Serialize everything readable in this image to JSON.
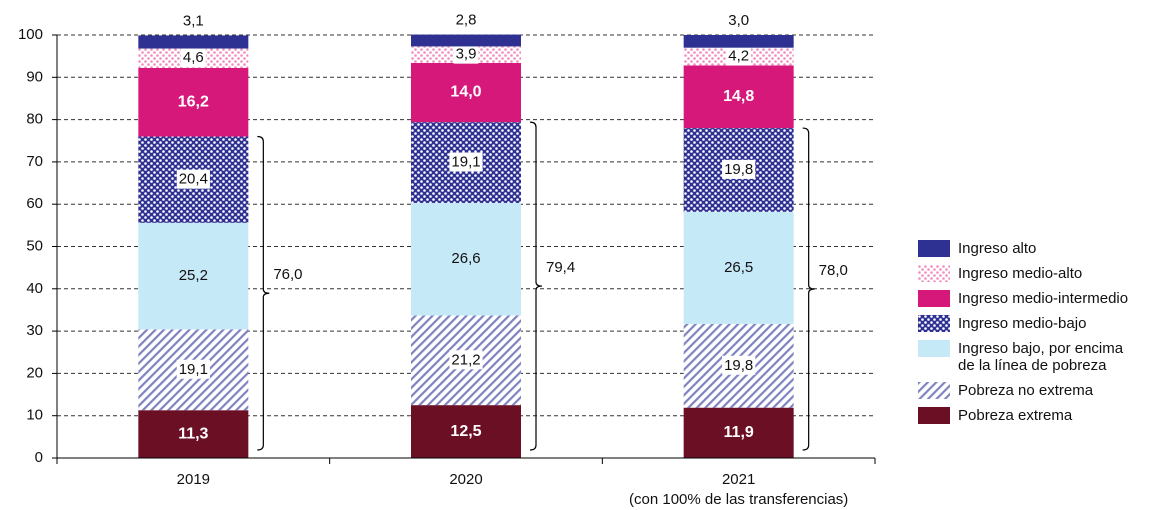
{
  "chart_data": {
    "type": "stacked_bar",
    "categories": [
      "2019",
      "2020",
      "2021"
    ],
    "category_sublabels": [
      null,
      null,
      "(con 100% de las transferencias)"
    ],
    "ylim": [
      0,
      100
    ],
    "yticks": [
      0,
      10,
      20,
      30,
      40,
      50,
      60,
      70,
      80,
      90,
      100
    ],
    "grid": true,
    "legend": "right",
    "series": [
      {
        "name": "Pobreza extrema",
        "color": "#6b0f24",
        "label_color": "#ffffff",
        "values": [
          11.3,
          12.5,
          11.9
        ],
        "value_labels": [
          "11,3",
          "12,5",
          "11,9"
        ]
      },
      {
        "name": "Pobreza no extrema",
        "color": "#ffffff",
        "pattern": "stripes",
        "pattern_fill": "#7f84c0",
        "values": [
          19.1,
          21.2,
          19.8
        ],
        "value_labels": [
          "19,1",
          "21,2",
          "19,8"
        ]
      },
      {
        "name": "Ingreso bajo, por encima de la línea de pobreza",
        "color": "#c6e9f8",
        "values": [
          25.2,
          26.6,
          26.5
        ],
        "value_labels": [
          "25,2",
          "26,6",
          "26,5"
        ]
      },
      {
        "name": "Ingreso medio-bajo",
        "color": "#2e3192",
        "pattern": "dots",
        "pattern_fill": "#ffffff",
        "values": [
          20.4,
          19.1,
          19.8
        ],
        "value_labels": [
          "20,4",
          "19,1",
          "19,8"
        ]
      },
      {
        "name": "Ingreso medio-intermedio",
        "color": "#d6187b",
        "label_color": "#ffffff",
        "values": [
          16.2,
          14.0,
          14.8
        ],
        "value_labels": [
          "16,2",
          "14,0",
          "14,8"
        ]
      },
      {
        "name": "Ingreso medio-alto",
        "color": "#ffffff",
        "pattern": "dots",
        "pattern_fill": "#f08cbf",
        "values": [
          4.6,
          3.9,
          4.2
        ],
        "value_labels": [
          "4,6",
          "3,9",
          "4,2"
        ]
      },
      {
        "name": "Ingreso alto",
        "color": "#2e3192",
        "values": [
          3.1,
          2.8,
          3.0
        ],
        "value_labels": [
          "3,1",
          "2,8",
          "3,0"
        ]
      }
    ],
    "brackets": {
      "values": [
        76.0,
        79.4,
        78.0
      ],
      "value_labels": [
        "76,0",
        "79,4",
        "78,0"
      ]
    }
  }
}
